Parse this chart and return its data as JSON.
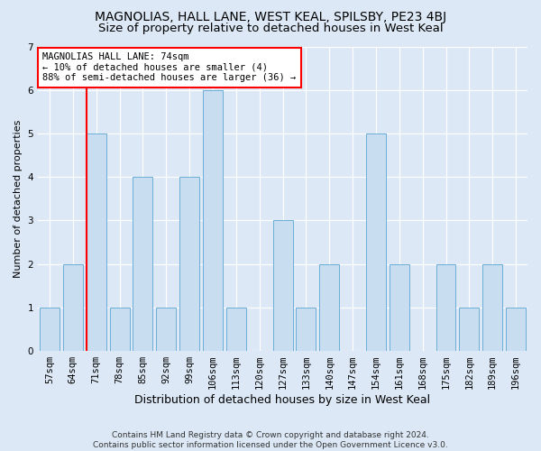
{
  "title": "MAGNOLIAS, HALL LANE, WEST KEAL, SPILSBY, PE23 4BJ",
  "subtitle": "Size of property relative to detached houses in West Keal",
  "xlabel": "Distribution of detached houses by size in West Keal",
  "ylabel": "Number of detached properties",
  "categories": [
    "57sqm",
    "64sqm",
    "71sqm",
    "78sqm",
    "85sqm",
    "92sqm",
    "99sqm",
    "106sqm",
    "113sqm",
    "120sqm",
    "127sqm",
    "133sqm",
    "140sqm",
    "147sqm",
    "154sqm",
    "161sqm",
    "168sqm",
    "175sqm",
    "182sqm",
    "189sqm",
    "196sqm"
  ],
  "values": [
    1,
    2,
    5,
    1,
    4,
    1,
    4,
    6,
    1,
    0,
    3,
    1,
    2,
    0,
    5,
    2,
    0,
    2,
    1,
    2,
    1
  ],
  "bar_color": "#c8ddf0",
  "bar_edge_color": "#6aaed6",
  "red_line_index": 2,
  "annotation_text": "MAGNOLIAS HALL LANE: 74sqm\n← 10% of detached houses are smaller (4)\n88% of semi-detached houses are larger (36) →",
  "annotation_box_facecolor": "white",
  "annotation_box_edgecolor": "red",
  "ylim": [
    0,
    7
  ],
  "yticks": [
    0,
    1,
    2,
    3,
    4,
    5,
    6,
    7
  ],
  "footer_line1": "Contains HM Land Registry data © Crown copyright and database right 2024.",
  "footer_line2": "Contains public sector information licensed under the Open Government Licence v3.0.",
  "bg_color": "#dce8f5",
  "grid_color": "white",
  "title_fontsize": 10,
  "subtitle_fontsize": 9.5,
  "xlabel_fontsize": 9,
  "ylabel_fontsize": 8,
  "tick_fontsize": 7.5,
  "annotation_fontsize": 7.5,
  "footer_fontsize": 6.5
}
